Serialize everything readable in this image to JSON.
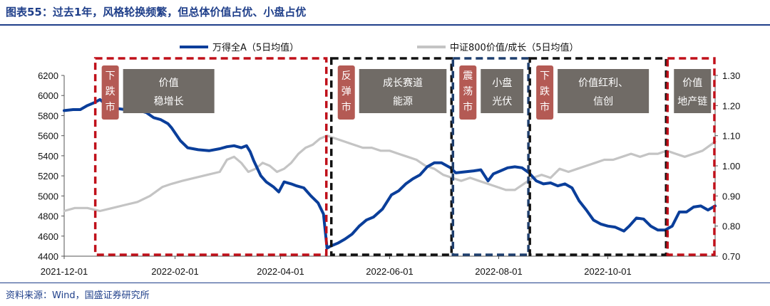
{
  "header": {
    "title": "图表55：过去1年，风格轮换频繁，但总体价值占优、小盘占优"
  },
  "footer": {
    "source": "资料来源：Wind，国盛证券研究所"
  },
  "colors": {
    "primary": "#0a3e9a",
    "secondary": "#c4c4c4",
    "red": "#c0101a",
    "black": "#111111",
    "navy": "#1f3f6e",
    "trend_box": "#b45a54",
    "theme_box": "#706b66"
  },
  "chart_data": {
    "type": "line",
    "x_start": "2021-12-01",
    "x_end": "2022-11-30",
    "xticks": [
      "2021-12-01",
      "2022-02-01",
      "2022-04-01",
      "2022-06-01",
      "2022-08-01",
      "2022-10-01"
    ],
    "y_left": {
      "min": 4400,
      "max": 6200,
      "ticks": [
        4400,
        4600,
        4800,
        5000,
        5200,
        5400,
        5600,
        5800,
        6000,
        6200
      ]
    },
    "y_right": {
      "min": 0.7,
      "max": 1.3,
      "ticks": [
        "0.70",
        "0.80",
        "0.90",
        "1.00",
        "1.10",
        "1.20",
        "1.30"
      ]
    },
    "legend": [
      "万得全A（5日均值）",
      "中证800价值/成长（5日均值）"
    ],
    "series": [
      {
        "name": "万得全A（5日均值）",
        "axis": "left",
        "color": "#0a3e9a",
        "points": [
          [
            "2021-12-01",
            5850
          ],
          [
            "2021-12-06",
            5860
          ],
          [
            "2021-12-10",
            5860
          ],
          [
            "2021-12-14",
            5900
          ],
          [
            "2021-12-18",
            5930
          ],
          [
            "2021-12-21",
            5960
          ],
          [
            "2021-12-23",
            5930
          ],
          [
            "2021-12-27",
            5890
          ],
          [
            "2021-12-31",
            5870
          ],
          [
            "2022-01-04",
            5860
          ],
          [
            "2022-01-08",
            5880
          ],
          [
            "2022-01-12",
            5850
          ],
          [
            "2022-01-16",
            5830
          ],
          [
            "2022-01-20",
            5780
          ],
          [
            "2022-01-24",
            5760
          ],
          [
            "2022-01-28",
            5720
          ],
          [
            "2022-01-30",
            5680
          ],
          [
            "2022-02-04",
            5550
          ],
          [
            "2022-02-08",
            5480
          ],
          [
            "2022-02-14",
            5460
          ],
          [
            "2022-02-20",
            5450
          ],
          [
            "2022-02-26",
            5470
          ],
          [
            "2022-03-02",
            5490
          ],
          [
            "2022-03-06",
            5500
          ],
          [
            "2022-03-10",
            5480
          ],
          [
            "2022-03-13",
            5500
          ],
          [
            "2022-03-15",
            5440
          ],
          [
            "2022-03-17",
            5350
          ],
          [
            "2022-03-21",
            5200
          ],
          [
            "2022-03-24",
            5140
          ],
          [
            "2022-03-28",
            5090
          ],
          [
            "2022-03-31",
            5040
          ],
          [
            "2022-04-03",
            5140
          ],
          [
            "2022-04-07",
            5120
          ],
          [
            "2022-04-10",
            5100
          ],
          [
            "2022-04-14",
            5080
          ],
          [
            "2022-04-18",
            5000
          ],
          [
            "2022-04-22",
            4930
          ],
          [
            "2022-04-25",
            4820
          ],
          [
            "2022-04-27",
            4480
          ],
          [
            "2022-04-29",
            4500
          ],
          [
            "2022-05-03",
            4530
          ],
          [
            "2022-05-07",
            4570
          ],
          [
            "2022-05-11",
            4620
          ],
          [
            "2022-05-15",
            4700
          ],
          [
            "2022-05-19",
            4760
          ],
          [
            "2022-05-23",
            4790
          ],
          [
            "2022-05-28",
            4870
          ],
          [
            "2022-06-02",
            5010
          ],
          [
            "2022-06-06",
            5050
          ],
          [
            "2022-06-10",
            5120
          ],
          [
            "2022-06-14",
            5170
          ],
          [
            "2022-06-18",
            5210
          ],
          [
            "2022-06-22",
            5290
          ],
          [
            "2022-06-26",
            5330
          ],
          [
            "2022-06-30",
            5330
          ],
          [
            "2022-07-05",
            5280
          ],
          [
            "2022-07-08",
            5230
          ],
          [
            "2022-07-13",
            5240
          ],
          [
            "2022-07-18",
            5250
          ],
          [
            "2022-07-22",
            5260
          ],
          [
            "2022-07-26",
            5150
          ],
          [
            "2022-07-29",
            5220
          ],
          [
            "2022-08-02",
            5250
          ],
          [
            "2022-08-06",
            5280
          ],
          [
            "2022-08-10",
            5290
          ],
          [
            "2022-08-14",
            5280
          ],
          [
            "2022-08-18",
            5230
          ],
          [
            "2022-08-22",
            5150
          ],
          [
            "2022-08-26",
            5120
          ],
          [
            "2022-08-30",
            5130
          ],
          [
            "2022-09-03",
            5100
          ],
          [
            "2022-09-07",
            5120
          ],
          [
            "2022-09-11",
            5080
          ],
          [
            "2022-09-15",
            4950
          ],
          [
            "2022-09-19",
            4860
          ],
          [
            "2022-09-23",
            4760
          ],
          [
            "2022-09-27",
            4720
          ],
          [
            "2022-10-01",
            4700
          ],
          [
            "2022-10-05",
            4690
          ],
          [
            "2022-10-10",
            4650
          ],
          [
            "2022-10-13",
            4700
          ],
          [
            "2022-10-17",
            4780
          ],
          [
            "2022-10-21",
            4770
          ],
          [
            "2022-10-25",
            4700
          ],
          [
            "2022-10-29",
            4660
          ],
          [
            "2022-11-02",
            4660
          ],
          [
            "2022-11-06",
            4700
          ],
          [
            "2022-11-10",
            4840
          ],
          [
            "2022-11-14",
            4840
          ],
          [
            "2022-11-18",
            4890
          ],
          [
            "2022-11-22",
            4900
          ],
          [
            "2022-11-26",
            4860
          ],
          [
            "2022-11-30",
            4900
          ]
        ]
      },
      {
        "name": "中证800价值/成长（5日均值）",
        "axis": "right",
        "color": "#c4c4c4",
        "points": [
          [
            "2021-12-01",
            0.85
          ],
          [
            "2021-12-07",
            0.86
          ],
          [
            "2021-12-14",
            0.86
          ],
          [
            "2021-12-21",
            0.85
          ],
          [
            "2021-12-28",
            0.86
          ],
          [
            "2022-01-04",
            0.87
          ],
          [
            "2022-01-11",
            0.88
          ],
          [
            "2022-01-18",
            0.9
          ],
          [
            "2022-01-25",
            0.93
          ],
          [
            "2022-01-30",
            0.94
          ],
          [
            "2022-02-05",
            0.95
          ],
          [
            "2022-02-12",
            0.96
          ],
          [
            "2022-02-19",
            0.97
          ],
          [
            "2022-02-26",
            0.98
          ],
          [
            "2022-03-02",
            1.02
          ],
          [
            "2022-03-06",
            1.03
          ],
          [
            "2022-03-10",
            1.01
          ],
          [
            "2022-03-14",
            0.98
          ],
          [
            "2022-03-18",
            0.99
          ],
          [
            "2022-03-22",
            1.01
          ],
          [
            "2022-03-26",
            1.0
          ],
          [
            "2022-03-30",
            0.98
          ],
          [
            "2022-04-03",
            0.99
          ],
          [
            "2022-04-07",
            1.01
          ],
          [
            "2022-04-11",
            1.04
          ],
          [
            "2022-04-15",
            1.06
          ],
          [
            "2022-04-19",
            1.07
          ],
          [
            "2022-04-23",
            1.09
          ],
          [
            "2022-04-27",
            1.1
          ],
          [
            "2022-05-02",
            1.09
          ],
          [
            "2022-05-07",
            1.08
          ],
          [
            "2022-05-12",
            1.07
          ],
          [
            "2022-05-17",
            1.06
          ],
          [
            "2022-05-22",
            1.06
          ],
          [
            "2022-05-27",
            1.05
          ],
          [
            "2022-06-01",
            1.05
          ],
          [
            "2022-06-06",
            1.04
          ],
          [
            "2022-06-11",
            1.03
          ],
          [
            "2022-06-16",
            1.02
          ],
          [
            "2022-06-21",
            1.0
          ],
          [
            "2022-06-26",
            0.99
          ],
          [
            "2022-07-01",
            0.97
          ],
          [
            "2022-07-06",
            0.96
          ],
          [
            "2022-07-11",
            0.95
          ],
          [
            "2022-07-16",
            0.96
          ],
          [
            "2022-07-21",
            0.95
          ],
          [
            "2022-07-26",
            0.94
          ],
          [
            "2022-07-31",
            0.93
          ],
          [
            "2022-08-05",
            0.92
          ],
          [
            "2022-08-10",
            0.92
          ],
          [
            "2022-08-15",
            0.94
          ],
          [
            "2022-08-20",
            0.96
          ],
          [
            "2022-08-25",
            0.97
          ],
          [
            "2022-08-30",
            0.96
          ],
          [
            "2022-09-04",
            0.99
          ],
          [
            "2022-09-09",
            0.98
          ],
          [
            "2022-09-14",
            0.99
          ],
          [
            "2022-09-19",
            1.0
          ],
          [
            "2022-09-24",
            1.01
          ],
          [
            "2022-09-29",
            1.02
          ],
          [
            "2022-10-04",
            1.02
          ],
          [
            "2022-10-09",
            1.03
          ],
          [
            "2022-10-14",
            1.04
          ],
          [
            "2022-10-19",
            1.03
          ],
          [
            "2022-10-24",
            1.04
          ],
          [
            "2022-10-29",
            1.04
          ],
          [
            "2022-11-03",
            1.05
          ],
          [
            "2022-11-08",
            1.04
          ],
          [
            "2022-11-13",
            1.03
          ],
          [
            "2022-11-18",
            1.04
          ],
          [
            "2022-11-23",
            1.05
          ],
          [
            "2022-11-30",
            1.08
          ]
        ]
      }
    ],
    "phases": [
      {
        "start": "2021-12-18",
        "end": "2022-04-27",
        "color": "#c0101a",
        "trend": [
          "下",
          "跌",
          "市"
        ],
        "theme": [
          "价值",
          "稳增长"
        ]
      },
      {
        "start": "2022-04-29",
        "end": "2022-07-06",
        "color": "#111111",
        "trend": [
          "反",
          "弹",
          "市"
        ],
        "theme": [
          "成长赛道",
          "能源"
        ]
      },
      {
        "start": "2022-07-06",
        "end": "2022-08-18",
        "color": "#1f3f6e",
        "trend": [
          "震",
          "荡",
          "市"
        ],
        "theme": [
          "小盘",
          "光伏"
        ]
      },
      {
        "start": "2022-08-18",
        "end": "2022-11-03",
        "color": "#111111",
        "trend": [
          "下",
          "跌",
          "市"
        ],
        "theme": [
          "价值红利、",
          "信创"
        ]
      },
      {
        "start": "2022-11-03",
        "end": "2022-11-30",
        "color": "#c0101a",
        "trend": [],
        "theme": [
          "价值",
          "地产链"
        ]
      }
    ]
  }
}
